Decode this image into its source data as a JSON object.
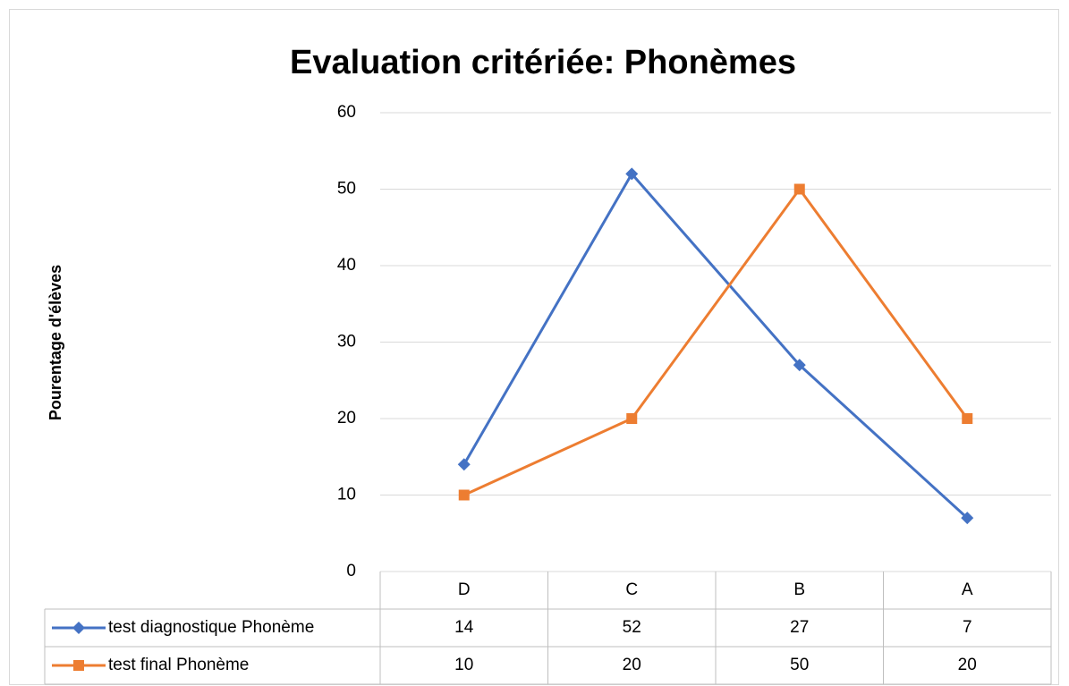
{
  "chart_data": {
    "type": "line",
    "title": "Evaluation critériée: Phonèmes",
    "y_label": "Pourentage d'élèves",
    "categories": [
      "D",
      "C",
      "B",
      "A"
    ],
    "series": [
      {
        "name": "test diagnostique Phonème",
        "color": "#4472c4",
        "marker": "diamond",
        "values": [
          14,
          52,
          27,
          7
        ]
      },
      {
        "name": "test final Phonème",
        "color": "#ed7d31",
        "marker": "square",
        "values": [
          10,
          20,
          50,
          20
        ]
      }
    ],
    "ylim": [
      0,
      60
    ],
    "yticks": [
      0,
      10,
      20,
      30,
      40,
      50,
      60
    ],
    "grid": true,
    "data_table": true
  }
}
